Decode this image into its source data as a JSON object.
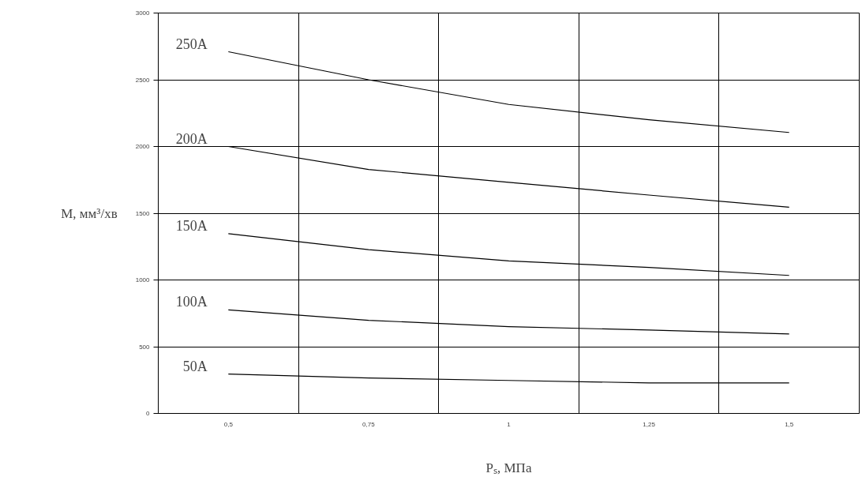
{
  "chart_data": {
    "type": "line",
    "xlabel": "Pₛ, МПа",
    "ylabel": "M, мм³/хв",
    "categories": [
      "0,5",
      "0,75",
      "1",
      "1,25",
      "1,5"
    ],
    "ylim": [
      0,
      3000
    ],
    "yticks": [
      0,
      500,
      1000,
      1500,
      2000,
      2500,
      3000
    ],
    "grid": true,
    "series": [
      {
        "name": "250A",
        "color": "#000000",
        "values": [
          2710,
          2500,
          2315,
          2200,
          2105
        ]
      },
      {
        "name": "200A",
        "color": "#000000",
        "values": [
          2000,
          1828,
          1732,
          1636,
          1545
        ]
      },
      {
        "name": "150A",
        "color": "#000000",
        "values": [
          1347,
          1227,
          1143,
          1094,
          1034
        ]
      },
      {
        "name": "100A",
        "color": "#000000",
        "values": [
          776,
          698,
          650,
          625,
          595
        ]
      },
      {
        "name": "50A",
        "color": "#000000",
        "values": [
          295,
          265,
          247,
          229,
          229
        ]
      }
    ]
  }
}
